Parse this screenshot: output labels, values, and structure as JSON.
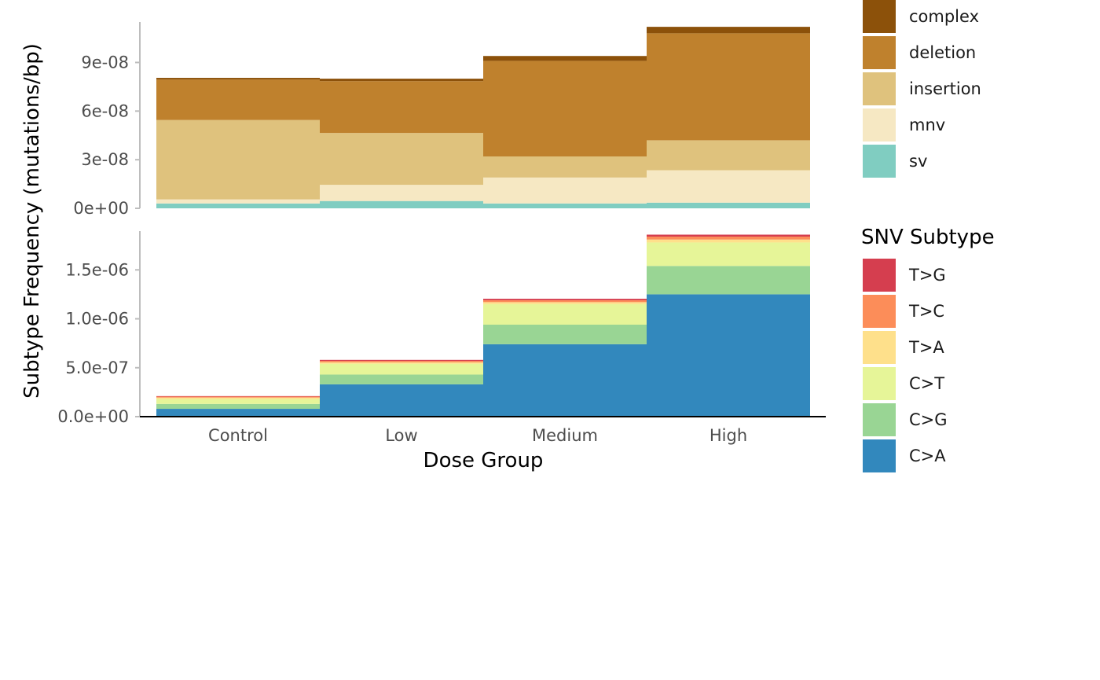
{
  "chart_data": {
    "type": "bar",
    "xlabel": "Dose Group",
    "ylabel": "Subtype Frequency (mutations/bp)",
    "categories": [
      "Control",
      "Low",
      "Medium",
      "High"
    ],
    "panels": [
      {
        "name": "indel-panel",
        "ylim": [
          0,
          1.14e-07
        ],
        "yticks": [
          0,
          3e-08,
          6e-08,
          9e-08
        ],
        "ytick_labels": [
          "0e+00",
          "3e-08",
          "6e-08",
          "9e-08"
        ],
        "series": [
          {
            "name": "sv",
            "color": "#80CDC1",
            "values": [
              3e-09,
              4.5e-09,
              3e-09,
              3.5e-09
            ]
          },
          {
            "name": "mnv",
            "color": "#F6E8C3",
            "values": [
              2.5e-09,
              1e-08,
              1.6e-08,
              2e-08
            ]
          },
          {
            "name": "insertion",
            "color": "#DFC27D",
            "values": [
              4.9e-08,
              3.2e-08,
              1.3e-08,
              1.85e-08
            ]
          },
          {
            "name": "deletion",
            "color": "#BF812D",
            "values": [
              2.5e-08,
              3.2e-08,
              5.9e-08,
              6.6e-08
            ]
          },
          {
            "name": "complex",
            "color": "#8C510A",
            "values": [
              1e-09,
              1.5e-09,
              3e-09,
              4e-09
            ]
          }
        ]
      },
      {
        "name": "snv-panel",
        "ylim": [
          0,
          1.88e-06
        ],
        "yticks": [
          0,
          5e-07,
          1e-06,
          1.5e-06
        ],
        "ytick_labels": [
          "0.0e+00",
          "5.0e-07",
          "1.0e-06",
          "1.5e-06"
        ],
        "series": [
          {
            "name": "C>A",
            "color": "#3288BD",
            "values": [
              8e-08,
              3.3e-07,
              7.4e-07,
              1.25e-06
            ]
          },
          {
            "name": "C>G",
            "color": "#99D594",
            "values": [
              5e-08,
              1e-07,
              2e-07,
              2.9e-07
            ]
          },
          {
            "name": "C>T",
            "color": "#E6F598",
            "values": [
              5e-08,
              1.1e-07,
              2.1e-07,
              2.4e-07
            ]
          },
          {
            "name": "T>A",
            "color": "#FEE08B",
            "values": [
              1.5e-08,
              1.5e-08,
              2e-08,
              3e-08
            ]
          },
          {
            "name": "T>C",
            "color": "#FC8D59",
            "values": [
              1e-08,
              1.5e-08,
              2e-08,
              3e-08
            ]
          },
          {
            "name": "T>G",
            "color": "#D53E4F",
            "values": [
              5e-09,
              1e-08,
              1.5e-08,
              2e-08
            ]
          }
        ]
      }
    ],
    "legends": [
      {
        "title": "",
        "items": [
          {
            "label": "complex",
            "color": "#8C510A"
          },
          {
            "label": "deletion",
            "color": "#BF812D"
          },
          {
            "label": "insertion",
            "color": "#DFC27D"
          },
          {
            "label": "mnv",
            "color": "#F6E8C3"
          },
          {
            "label": "sv",
            "color": "#80CDC1"
          }
        ]
      },
      {
        "title": "SNV Subtype",
        "items": [
          {
            "label": "T>G",
            "color": "#D53E4F"
          },
          {
            "label": "T>C",
            "color": "#FC8D59"
          },
          {
            "label": "T>A",
            "color": "#FEE08B"
          },
          {
            "label": "C>T",
            "color": "#E6F598"
          },
          {
            "label": "C>G",
            "color": "#99D594"
          },
          {
            "label": "C>A",
            "color": "#3288BD"
          }
        ]
      }
    ]
  }
}
